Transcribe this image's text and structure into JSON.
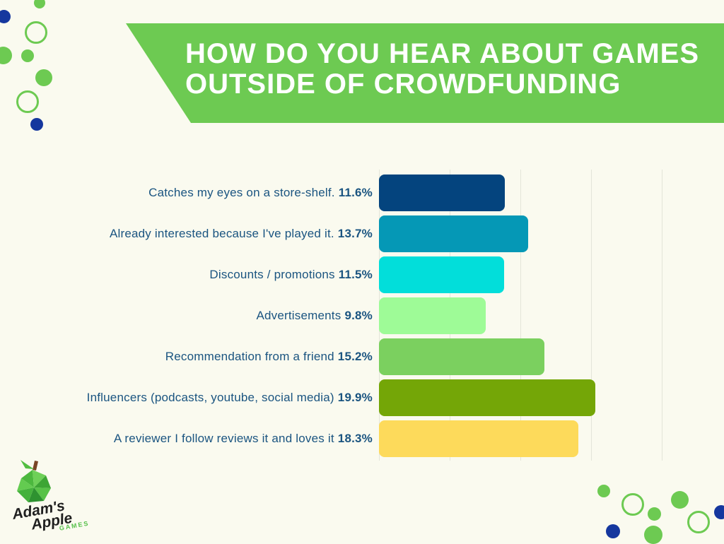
{
  "header": {
    "title_line1": "HOW DO YOU HEAR ABOUT GAMES",
    "title_line2": "OUTSIDE OF CROWDFUNDING"
  },
  "chart_data": {
    "type": "bar",
    "orientation": "horizontal",
    "title": "HOW DO YOU HEAR ABOUT GAMES OUTSIDE OF CROWDFUNDING",
    "categories": [
      "Catches my eyes on a store-shelf.",
      "Already interested because I've played it.",
      "Discounts / promotions",
      "Advertisements",
      "Recommendation from a friend",
      "Influencers (podcasts, youtube, social media)",
      "A reviewer I follow reviews it and loves it"
    ],
    "values": [
      11.6,
      13.7,
      11.5,
      9.8,
      15.2,
      19.9,
      18.3
    ],
    "value_labels": [
      "11.6%",
      "13.7%",
      "11.5%",
      "9.8%",
      "15.2%",
      "19.9%",
      "18.3%"
    ],
    "bar_colors": [
      "#04447E",
      "#0598B6",
      "#02DEDA",
      "#9EFB97",
      "#7BD05F",
      "#74A607",
      "#FDDA5B"
    ],
    "xlim": [
      0,
      26
    ],
    "gridline_values": [
      0,
      6.5,
      13,
      19.5,
      26
    ],
    "grid": true,
    "legend": false,
    "xlabel": "",
    "ylabel": ""
  },
  "logo": {
    "line1": "Adam's",
    "line2": "Apple",
    "line3": "GAMES"
  },
  "colors": {
    "background": "#FAFAEF",
    "banner_green": "#6DCA52",
    "label_text": "#1A5480",
    "gridline": "#E3E5D9",
    "circle_green": "#6DCA52",
    "circle_navy": "#15379E"
  }
}
